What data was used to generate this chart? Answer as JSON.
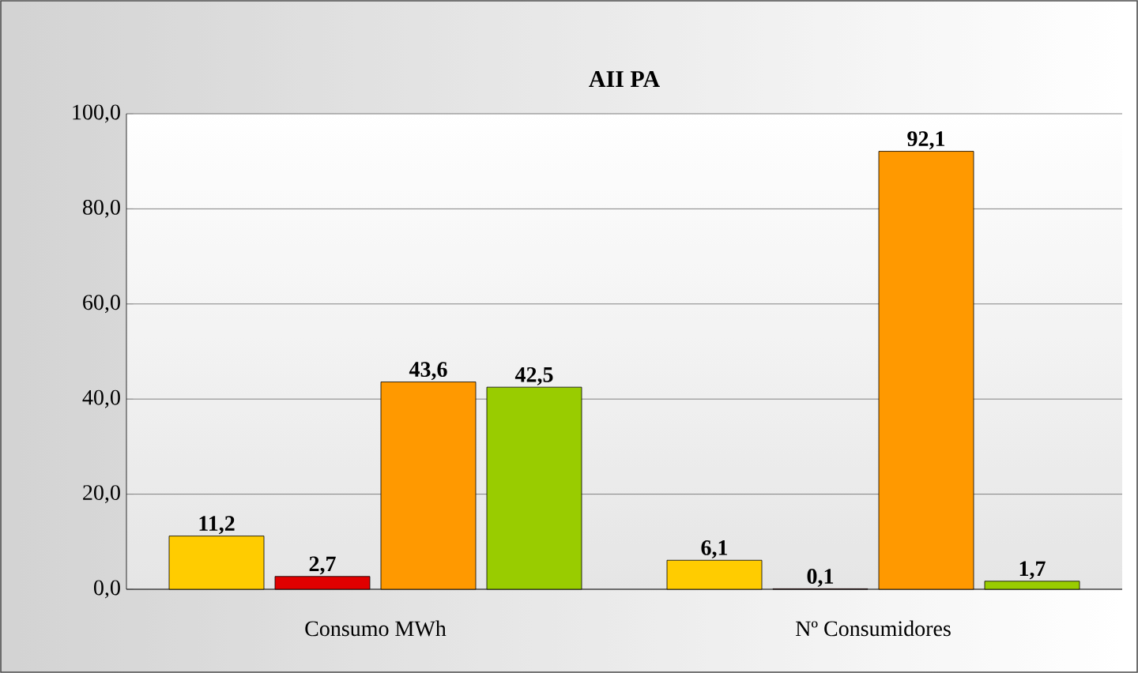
{
  "chart_data": {
    "type": "bar",
    "title": "AII PA",
    "categories": [
      "Consumo MWh",
      "Nº Consumidores"
    ],
    "series": [
      {
        "color": "#ffcc00",
        "values": [
          11.2,
          6.1
        ],
        "value_labels": [
          "11,2",
          "6,1"
        ]
      },
      {
        "color": "#e00000",
        "values": [
          2.7,
          0.1
        ],
        "value_labels": [
          "2,7",
          "0,1"
        ]
      },
      {
        "color": "#ff9900",
        "values": [
          43.6,
          92.1
        ],
        "value_labels": [
          "43,6",
          "92,1"
        ]
      },
      {
        "color": "#99cc00",
        "values": [
          42.5,
          1.7
        ],
        "value_labels": [
          "42,5",
          "1,7"
        ]
      }
    ],
    "ylim": [
      0,
      100
    ],
    "yticks": [
      {
        "value": 0,
        "label": "0,0"
      },
      {
        "value": 20,
        "label": "20,0"
      },
      {
        "value": 40,
        "label": "40,0"
      },
      {
        "value": 60,
        "label": "60,0"
      },
      {
        "value": 80,
        "label": "80,0"
      },
      {
        "value": 100,
        "label": "100,0"
      }
    ],
    "grid": "y"
  }
}
